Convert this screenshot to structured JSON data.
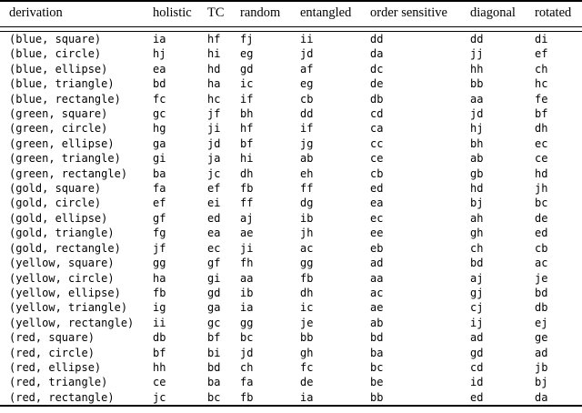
{
  "colors": {
    "background": "#ffffff",
    "text": "#000000",
    "rule": "#000000"
  },
  "table": {
    "headers": [
      "derivation",
      "holistic",
      "TC",
      "random",
      "entangled",
      "order sensitive",
      "diagonal",
      "rotated"
    ],
    "rows": [
      {
        "derivation": "(blue, square)",
        "values": [
          "ia",
          "hf",
          "fj",
          "ii",
          "dd",
          "dd",
          "di"
        ]
      },
      {
        "derivation": "(blue, circle)",
        "values": [
          "hj",
          "hi",
          "eg",
          "jd",
          "da",
          "jj",
          "ef"
        ]
      },
      {
        "derivation": "(blue, ellipse)",
        "values": [
          "ea",
          "hd",
          "gd",
          "af",
          "dc",
          "hh",
          "ch"
        ]
      },
      {
        "derivation": "(blue, triangle)",
        "values": [
          "bd",
          "ha",
          "ic",
          "eg",
          "de",
          "bb",
          "hc"
        ]
      },
      {
        "derivation": "(blue, rectangle)",
        "values": [
          "fc",
          "hc",
          "if",
          "cb",
          "db",
          "aa",
          "fe"
        ]
      },
      {
        "derivation": "(green, square)",
        "values": [
          "gc",
          "jf",
          "bh",
          "dd",
          "cd",
          "jd",
          "bf"
        ]
      },
      {
        "derivation": "(green, circle)",
        "values": [
          "hg",
          "ji",
          "hf",
          "if",
          "ca",
          "hj",
          "dh"
        ]
      },
      {
        "derivation": "(green, ellipse)",
        "values": [
          "ga",
          "jd",
          "bf",
          "jg",
          "cc",
          "bh",
          "ec"
        ]
      },
      {
        "derivation": "(green, triangle)",
        "values": [
          "gi",
          "ja",
          "hi",
          "ab",
          "ce",
          "ab",
          "ce"
        ]
      },
      {
        "derivation": "(green, rectangle)",
        "values": [
          "ba",
          "jc",
          "dh",
          "eh",
          "cb",
          "gb",
          "hd"
        ]
      },
      {
        "derivation": "(gold, square)",
        "values": [
          "fa",
          "ef",
          "fb",
          "ff",
          "ed",
          "hd",
          "jh"
        ]
      },
      {
        "derivation": "(gold, circle)",
        "values": [
          "ef",
          "ei",
          "ff",
          "dg",
          "ea",
          "bj",
          "bc"
        ]
      },
      {
        "derivation": "(gold, ellipse)",
        "values": [
          "gf",
          "ed",
          "aj",
          "ib",
          "ec",
          "ah",
          "de"
        ]
      },
      {
        "derivation": "(gold, triangle)",
        "values": [
          "fg",
          "ea",
          "ae",
          "jh",
          "ee",
          "gh",
          "ed"
        ]
      },
      {
        "derivation": "(gold, rectangle)",
        "values": [
          "jf",
          "ec",
          "ji",
          "ac",
          "eb",
          "ch",
          "cb"
        ]
      },
      {
        "derivation": "(yellow, square)",
        "values": [
          "gg",
          "gf",
          "fh",
          "gg",
          "ad",
          "bd",
          "ac"
        ]
      },
      {
        "derivation": "(yellow, circle)",
        "values": [
          "ha",
          "gi",
          "aa",
          "fb",
          "aa",
          "aj",
          "je"
        ]
      },
      {
        "derivation": "(yellow, ellipse)",
        "values": [
          "fb",
          "gd",
          "ib",
          "dh",
          "ac",
          "gj",
          "bd"
        ]
      },
      {
        "derivation": "(yellow, triangle)",
        "values": [
          "ig",
          "ga",
          "ia",
          "ic",
          "ae",
          "cj",
          "db"
        ]
      },
      {
        "derivation": "(yellow, rectangle)",
        "values": [
          "ii",
          "gc",
          "gg",
          "je",
          "ab",
          "ij",
          "ej"
        ]
      },
      {
        "derivation": "(red, square)",
        "values": [
          "db",
          "bf",
          "bc",
          "bb",
          "bd",
          "ad",
          "ge"
        ]
      },
      {
        "derivation": "(red, circle)",
        "values": [
          "bf",
          "bi",
          "jd",
          "gh",
          "ba",
          "gd",
          "ad"
        ]
      },
      {
        "derivation": "(red, ellipse)",
        "values": [
          "hh",
          "bd",
          "ch",
          "fc",
          "bc",
          "cd",
          "jb"
        ]
      },
      {
        "derivation": "(red, triangle)",
        "values": [
          "ce",
          "ba",
          "fa",
          "de",
          "be",
          "id",
          "bj"
        ]
      },
      {
        "derivation": "(red, rectangle)",
        "values": [
          "jc",
          "bc",
          "fb",
          "ia",
          "bb",
          "ed",
          "da"
        ]
      }
    ]
  }
}
